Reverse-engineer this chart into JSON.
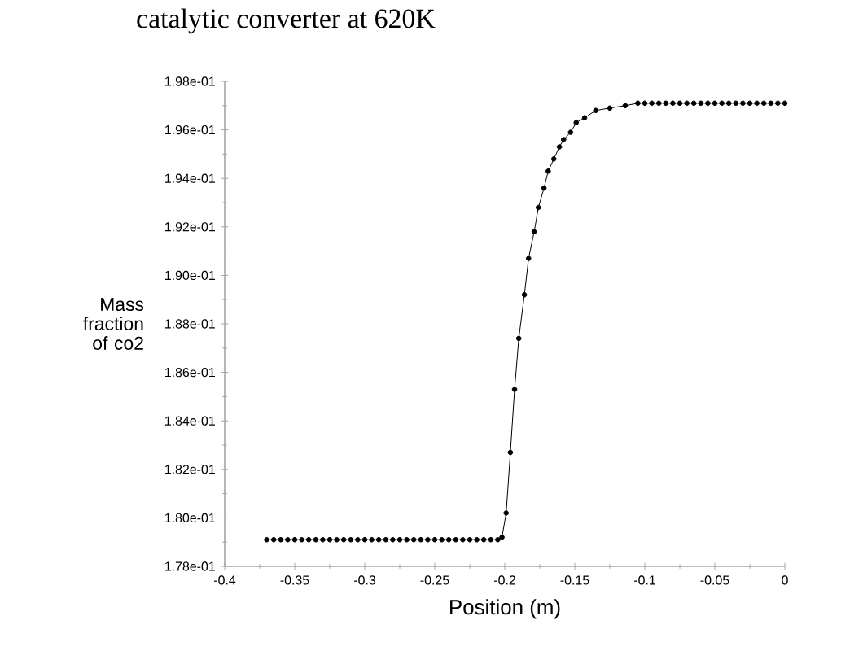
{
  "chart_data": {
    "type": "line",
    "title": "catalytic converter at 620K",
    "xlabel": "Position (m)",
    "ylabel": "Mass fraction of co2",
    "series": [
      {
        "color": "#000000",
        "x": [
          -0.37,
          -0.365,
          -0.36,
          -0.355,
          -0.35,
          -0.345,
          -0.34,
          -0.335,
          -0.33,
          -0.325,
          -0.32,
          -0.315,
          -0.31,
          -0.305,
          -0.3,
          -0.295,
          -0.29,
          -0.285,
          -0.28,
          -0.275,
          -0.27,
          -0.265,
          -0.26,
          -0.255,
          -0.25,
          -0.245,
          -0.24,
          -0.235,
          -0.23,
          -0.225,
          -0.22,
          -0.215,
          -0.21,
          -0.205,
          -0.202,
          -0.199,
          -0.196,
          -0.193,
          -0.19,
          -0.186,
          -0.183,
          -0.179,
          -0.176,
          -0.172,
          -0.169,
          -0.165,
          -0.161,
          -0.158,
          -0.153,
          -0.149,
          -0.143,
          -0.135,
          -0.125,
          -0.114,
          -0.105,
          -0.1,
          -0.095,
          -0.09,
          -0.085,
          -0.08,
          -0.075,
          -0.07,
          -0.065,
          -0.06,
          -0.055,
          -0.05,
          -0.045,
          -0.04,
          -0.035,
          -0.03,
          -0.025,
          -0.02,
          -0.015,
          -0.01,
          -0.005,
          0.0
        ],
        "values": [
          0.1791,
          0.1791,
          0.1791,
          0.1791,
          0.1791,
          0.1791,
          0.1791,
          0.1791,
          0.1791,
          0.1791,
          0.1791,
          0.1791,
          0.1791,
          0.1791,
          0.1791,
          0.1791,
          0.1791,
          0.1791,
          0.1791,
          0.1791,
          0.1791,
          0.1791,
          0.1791,
          0.1791,
          0.1791,
          0.1791,
          0.1791,
          0.1791,
          0.1791,
          0.1791,
          0.1791,
          0.1791,
          0.1791,
          0.1791,
          0.1792,
          0.1802,
          0.1827,
          0.1853,
          0.1874,
          0.1892,
          0.1907,
          0.1918,
          0.1928,
          0.1936,
          0.1943,
          0.1948,
          0.1953,
          0.1956,
          0.1959,
          0.1963,
          0.1965,
          0.1968,
          0.1969,
          0.197,
          0.1971,
          0.1971,
          0.1971,
          0.1971,
          0.1971,
          0.1971,
          0.1971,
          0.1971,
          0.1971,
          0.1971,
          0.1971,
          0.1971,
          0.1971,
          0.1971,
          0.1971,
          0.1971,
          0.1971,
          0.1971,
          0.1971,
          0.1971,
          0.1971,
          0.1971
        ]
      }
    ],
    "xlim": [
      -0.4,
      0
    ],
    "xticks": [
      -0.4,
      -0.35,
      -0.3,
      -0.25,
      -0.2,
      -0.15,
      -0.1,
      -0.05,
      0
    ],
    "ylim": [
      0.178,
      0.198
    ],
    "yticks": [
      {
        "value": 0.178,
        "label": "1.78e-01"
      },
      {
        "value": 0.18,
        "label": "1.80e-01"
      },
      {
        "value": 0.182,
        "label": "1.82e-01"
      },
      {
        "value": 0.184,
        "label": "1.84e-01"
      },
      {
        "value": 0.186,
        "label": "1.86e-01"
      },
      {
        "value": 0.188,
        "label": "1.88e-01"
      },
      {
        "value": 0.19,
        "label": "1.90e-01"
      },
      {
        "value": 0.192,
        "label": "1.92e-01"
      },
      {
        "value": 0.194,
        "label": "1.94e-01"
      },
      {
        "value": 0.196,
        "label": "1.96e-01"
      },
      {
        "value": 0.198,
        "label": "1.98e-01"
      }
    ],
    "grid": false,
    "marker": "circle",
    "line_style": "solid"
  }
}
